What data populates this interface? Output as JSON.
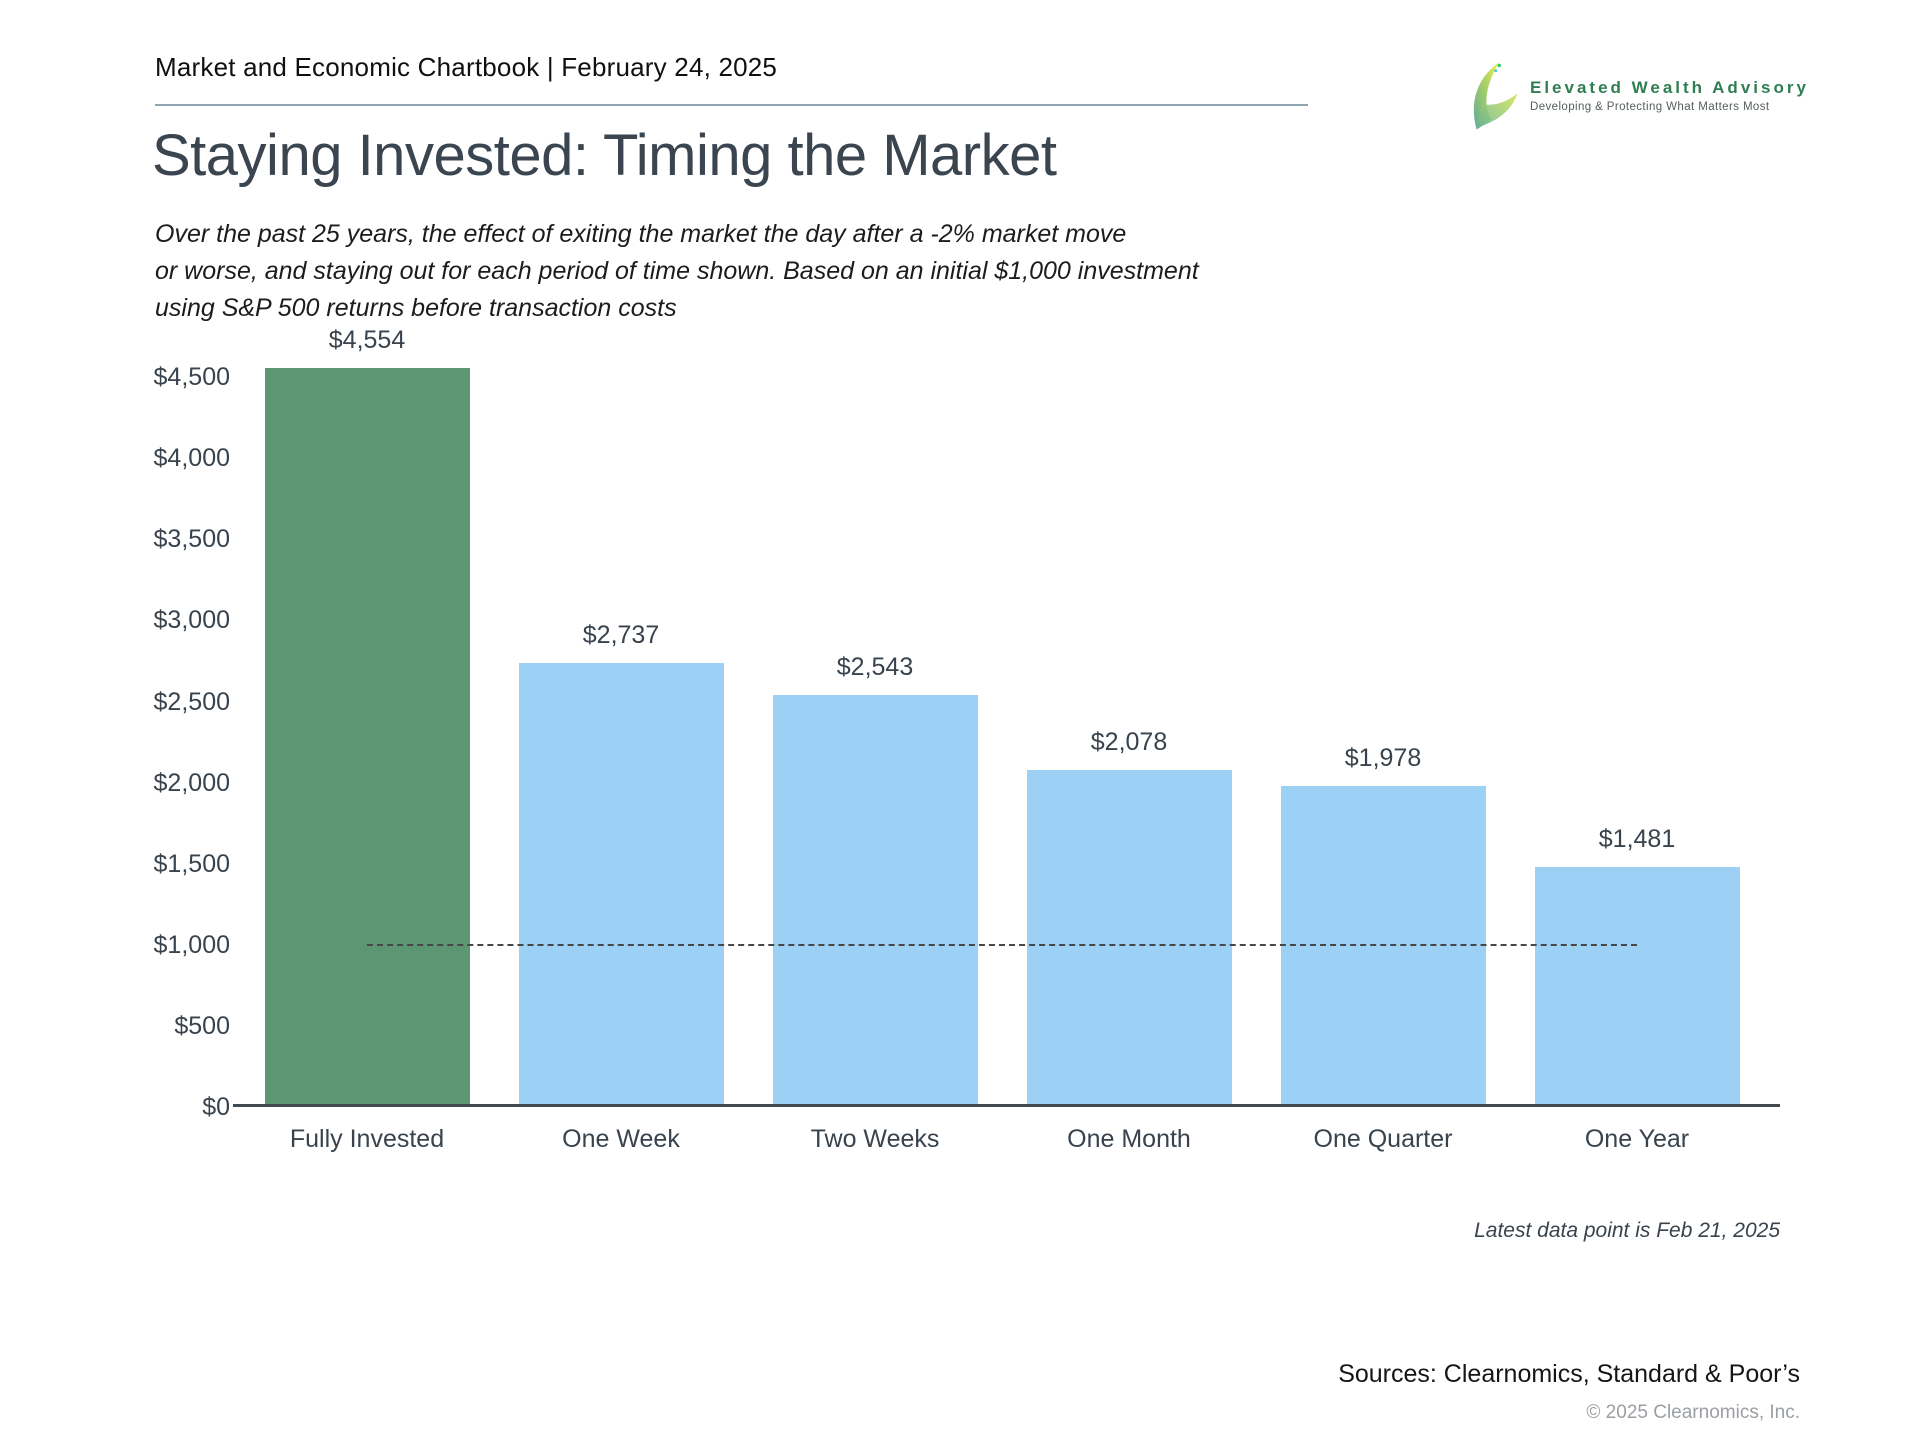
{
  "header": {
    "title": "Market and Economic Chartbook | February 24, 2025"
  },
  "logo": {
    "name": "Elevated Wealth Advisory",
    "tagline": "Developing & Protecting What Matters Most",
    "brand_color": "#2f7e52"
  },
  "page": {
    "title": "Staying Invested: Timing the Market",
    "subtitle_lines": [
      "Over the past 25 years, the effect of exiting the market the day after a -2% market move",
      "or worse, and staying out for each period of time shown. Based on an initial $1,000 investment",
      "using S&P 500 returns before transaction costs"
    ]
  },
  "chart_data": {
    "type": "bar",
    "title": "Staying Invested: Timing the Market",
    "categories": [
      "Fully Invested",
      "One Week",
      "Two Weeks",
      "One Month",
      "One Quarter",
      "One Year"
    ],
    "values": [
      4554,
      2737,
      2543,
      2078,
      1978,
      1481
    ],
    "value_labels": [
      "$4,554",
      "$2,737",
      "$2,543",
      "$2,078",
      "$1,978",
      "$1,481"
    ],
    "colors": [
      "#5d9672",
      "#9cd0f5",
      "#9cd0f5",
      "#9cd0f5",
      "#9cd0f5",
      "#9cd0f5"
    ],
    "highlight_color": "#5d9672",
    "default_bar_color": "#9cd0f5",
    "y_ticks": [
      {
        "v": 0,
        "label": "$0"
      },
      {
        "v": 500,
        "label": "$500"
      },
      {
        "v": 1000,
        "label": "$1,000"
      },
      {
        "v": 1500,
        "label": "$1,500"
      },
      {
        "v": 2000,
        "label": "$2,000"
      },
      {
        "v": 2500,
        "label": "$2,500"
      },
      {
        "v": 3000,
        "label": "$3,000"
      },
      {
        "v": 3500,
        "label": "$3,500"
      },
      {
        "v": 4000,
        "label": "$4,000"
      },
      {
        "v": 4500,
        "label": "$4,500"
      }
    ],
    "ylim": [
      0,
      4730
    ],
    "grid": false,
    "legend": false,
    "reference_line": {
      "value": 1000,
      "style": "dotted"
    },
    "xlabel": "",
    "ylabel": ""
  },
  "footer": {
    "latest_note": "Latest data point is Feb 21, 2025",
    "sources": "Sources: Clearnomics, Standard & Poor’s",
    "copyright": "© 2025 Clearnomics, Inc."
  }
}
